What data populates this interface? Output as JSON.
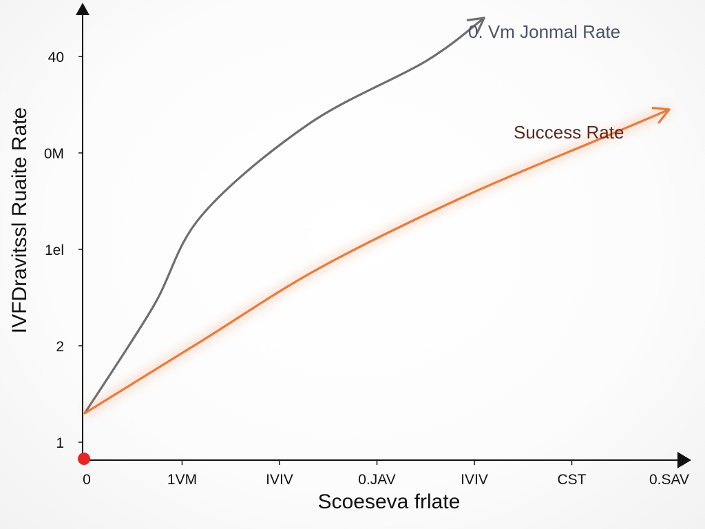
{
  "chart_data": {
    "type": "line",
    "xlabel": "Scoeseva frlate",
    "ylabel": "IVFDravitssl Ruaite Rate",
    "x_ticks": [
      "0",
      "1VM",
      "IVIV",
      "0.JAV",
      "IVIV",
      "CST",
      "0.SAV"
    ],
    "y_ticks": [
      "1",
      "2",
      "1el",
      "0M",
      "40"
    ],
    "series": [
      {
        "name": "0. Vm Jonmal Rate",
        "color": "#6e6e6e",
        "points": [
          [
            0,
            0.3
          ],
          [
            0.7,
            1.4
          ],
          [
            1.2,
            2.35
          ],
          [
            2.3,
            3.3
          ],
          [
            3.5,
            3.95
          ],
          [
            4.1,
            4.4
          ]
        ]
      },
      {
        "name": "Success Rate",
        "color": "#ea7a3c",
        "points": [
          [
            0,
            0.3
          ],
          [
            1.2,
            1.05
          ],
          [
            2.4,
            1.8
          ],
          [
            3.9,
            2.55
          ],
          [
            5.3,
            3.15
          ],
          [
            6.0,
            3.45
          ]
        ]
      }
    ],
    "grid": false,
    "legend": "inline labels near line ends"
  }
}
